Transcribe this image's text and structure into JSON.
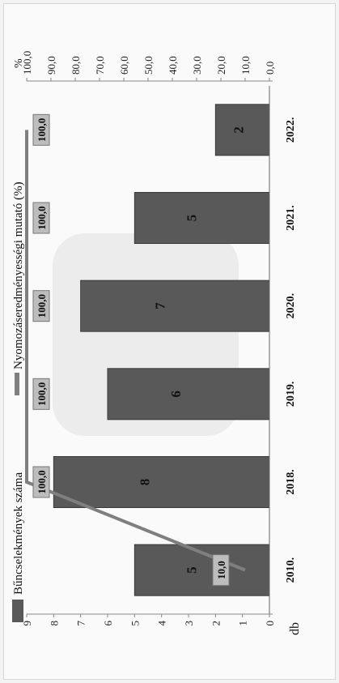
{
  "chart_data": {
    "type": "bar",
    "categories": [
      "2010.",
      "2018.",
      "2019.",
      "2020.",
      "2021.",
      "2022."
    ],
    "series": [
      {
        "name": "Bűncselekmények száma",
        "values": [
          5,
          8,
          6,
          7,
          5,
          2
        ],
        "axis": "left",
        "color": "#595959"
      },
      {
        "name": "Nyomozáseredményességi mutató (%)",
        "values": [
          10.0,
          100.0,
          100.0,
          100.0,
          100.0,
          100.0
        ],
        "axis": "right",
        "color": "#7f7f7f"
      }
    ],
    "bar_labels": [
      "5",
      "8",
      "6",
      "7",
      "5",
      "2"
    ],
    "line_labels": [
      "10,0",
      "100,0",
      "100,0",
      "100,0",
      "100,0",
      "100,0"
    ],
    "y_left": {
      "label": "db",
      "ticks": [
        "0",
        "1",
        "2",
        "3",
        "4",
        "5",
        "6",
        "7",
        "8",
        "9"
      ],
      "ylim": [
        0,
        9
      ]
    },
    "y_right": {
      "label": "%",
      "ticks": [
        "0,0",
        "10,0",
        "20,0",
        "30,0",
        "40,0",
        "50,0",
        "60,0",
        "70,0",
        "80,0",
        "90,0",
        "100,0"
      ],
      "ylim": [
        0,
        100
      ]
    },
    "legend_position": "top"
  }
}
